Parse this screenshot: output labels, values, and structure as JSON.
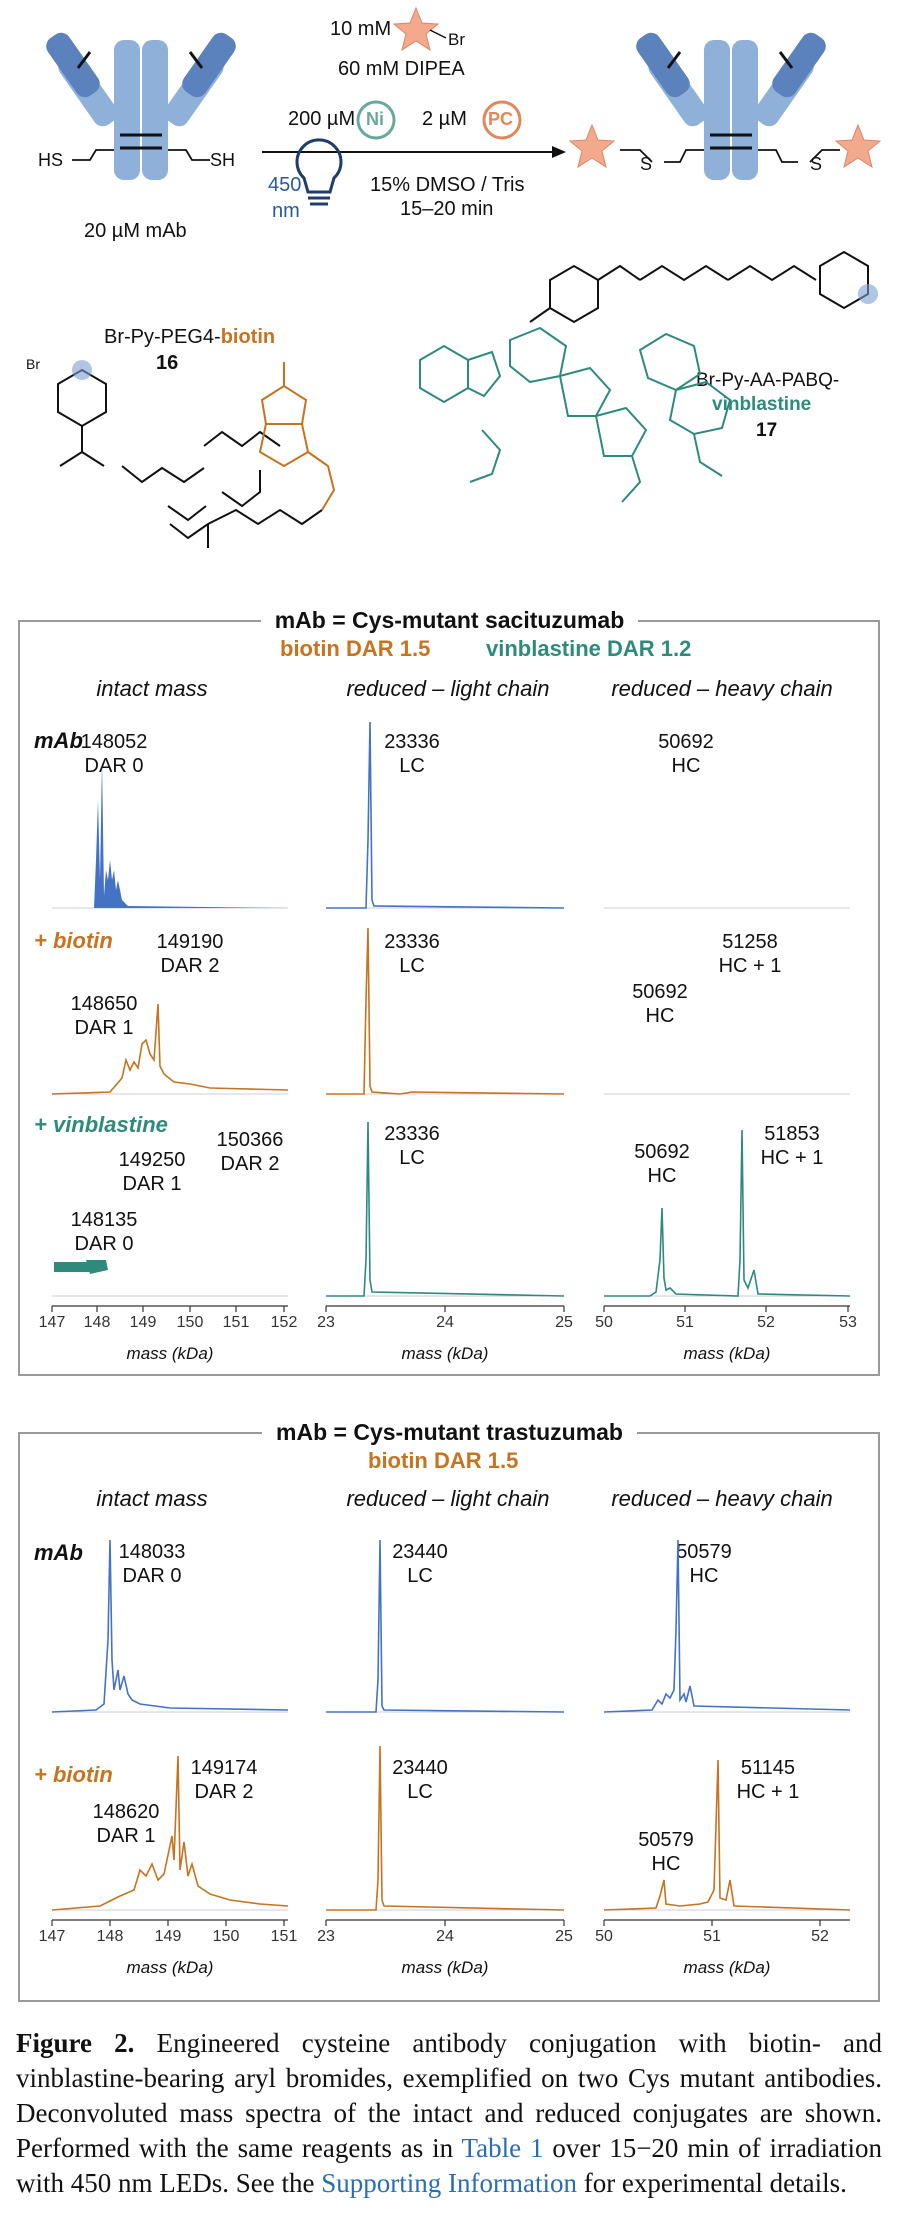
{
  "colors": {
    "blue": "#4472c4",
    "orange": "#c7731f",
    "teal": "#2f8a7c",
    "antibody": "#8fb0d8",
    "antibody_dark": "#5b82bd",
    "star": "#f2a98c",
    "link": "#2a6db5"
  },
  "scheme": {
    "reagent1": "10 mM",
    "reagent1_br": "Br",
    "reagent2": "60 mM DIPEA",
    "ni_conc": "200 µM",
    "ni_label": "Ni",
    "pc_conc": "2 µM",
    "pc_label": "PC",
    "wavelength": "450",
    "wavelength_unit": "nm",
    "solvent": "15% DMSO / Tris",
    "time": "15–20 min",
    "mab_conc": "20 µM mAb",
    "hs_left": "HS",
    "sh_right": "SH",
    "s_left": "S",
    "s_right": "S"
  },
  "compounds": {
    "c16": {
      "prefix": "Br-Py-PEG4-",
      "suffix": "biotin",
      "number": "16"
    },
    "c17": {
      "line1": "Br-Py-AA-PABQ-",
      "line2": "vinblastine",
      "number": "17"
    }
  },
  "panel1": {
    "title": "mAb = Cys-mutant sacituzumab",
    "dar_biotin": "biotin DAR 1.5",
    "dar_vinblastine": "vinblastine DAR 1.2",
    "col_titles": [
      "intact mass",
      "reduced – light chain",
      "reduced – heavy chain"
    ],
    "row_labels": [
      "mAb",
      "+ biotin",
      "+ vinblastine"
    ],
    "row1": {
      "intact": "148052\nDAR 0",
      "lc": "23336\nLC",
      "hc": "50692\nHC"
    },
    "row2": {
      "intact_a": "149190\nDAR 2",
      "intact_b": "148650\nDAR 1",
      "lc": "23336\nLC",
      "hc_a": "51258\nHC + 1",
      "hc_b": "50692\nHC"
    },
    "row3": {
      "intact_a": "149250\nDAR 1",
      "intact_b": "150366\nDAR 2",
      "intact_c": "148135\nDAR 0",
      "lc": "23336\nLC",
      "hc_a": "50692\nHC",
      "hc_b": "51853\nHC + 1"
    },
    "ticks_intact": [
      "147",
      "148",
      "149",
      "150",
      "151",
      "152"
    ],
    "ticks_lc": [
      "23",
      "24",
      "25"
    ],
    "ticks_hc": [
      "50",
      "51",
      "52",
      "53"
    ],
    "axis_label": "mass (kDa)"
  },
  "panel2": {
    "title": "mAb = Cys-mutant trastuzumab",
    "dar_biotin": "biotin DAR 1.5",
    "col_titles": [
      "intact mass",
      "reduced – light chain",
      "reduced – heavy chain"
    ],
    "row_labels": [
      "mAb",
      "+ biotin"
    ],
    "row1": {
      "intact": "148033\nDAR 0",
      "lc": "23440\nLC",
      "hc": "50579\nHC"
    },
    "row2": {
      "intact_a": "149174\nDAR 2",
      "intact_b": "148620\nDAR 1",
      "lc": "23440\nLC",
      "hc_a": "51145\nHC + 1",
      "hc_b": "50579\nHC"
    },
    "ticks_intact": [
      "147",
      "148",
      "149",
      "150",
      "151"
    ],
    "ticks_lc": [
      "23",
      "24",
      "25"
    ],
    "ticks_hc": [
      "50",
      "51",
      "52"
    ],
    "axis_label": "mass (kDa)"
  },
  "caption": {
    "label": "Figure 2.",
    "text1": " Engineered cysteine antibody conjugation with biotin- and vinblastine-bearing aryl bromides, exemplified on two Cys mutant antibodies. Deconvoluted mass spectra of the intact and reduced conjugates are shown. Performed with the same reagents as in ",
    "link1": "Table 1",
    "text2": " over 15−20 min of irradiation with 450 nm LEDs. See the ",
    "link2": "Supporting Information",
    "text3": " for experimental details."
  }
}
